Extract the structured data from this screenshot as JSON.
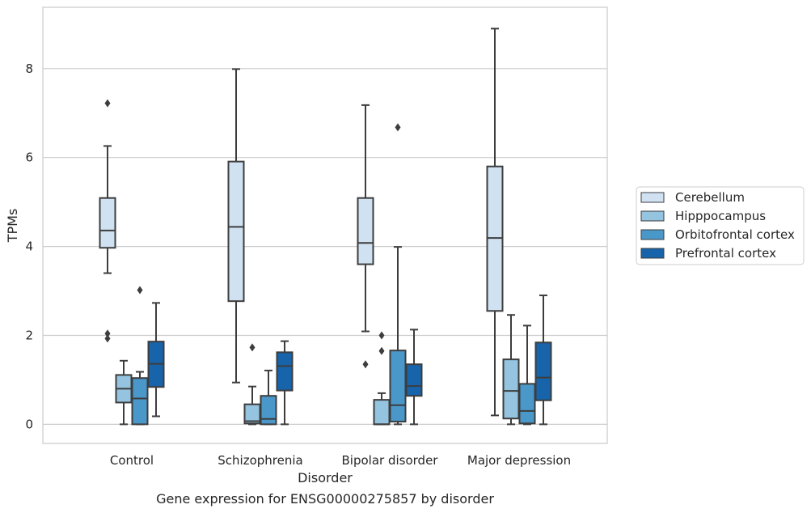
{
  "chart_data": {
    "type": "box",
    "title": "",
    "xlabel": "Disorder",
    "ylabel": "TPMs",
    "caption": "Gene expression for ENSG00000275857 by disorder",
    "categories": [
      "Control",
      "Schizophrenia",
      "Bipolar disorder",
      "Major depression"
    ],
    "ylim": [
      -0.43,
      9.38
    ],
    "yticks": [
      0,
      2,
      4,
      6,
      8
    ],
    "grid": true,
    "legend_position": "right",
    "series": [
      {
        "name": "Cerebellum",
        "color": "#d0e1f2",
        "boxes": [
          {
            "whislo": 3.4,
            "q1": 3.97,
            "med": 4.36,
            "q3": 5.09,
            "whishi": 6.26,
            "fliers": [
              7.22,
              2.04,
              1.93
            ]
          },
          {
            "whislo": 0.94,
            "q1": 2.77,
            "med": 4.44,
            "q3": 5.91,
            "whishi": 7.99,
            "fliers": []
          },
          {
            "whislo": 2.09,
            "q1": 3.6,
            "med": 4.08,
            "q3": 5.09,
            "whishi": 7.18,
            "fliers": [
              1.35
            ]
          },
          {
            "whislo": 0.2,
            "q1": 2.55,
            "med": 4.19,
            "q3": 5.8,
            "whishi": 8.9,
            "fliers": []
          }
        ]
      },
      {
        "name": "Hipppocampus",
        "color": "#94c4df",
        "boxes": [
          {
            "whislo": 0.0,
            "q1": 0.49,
            "med": 0.8,
            "q3": 1.11,
            "whishi": 1.43,
            "fliers": []
          },
          {
            "whislo": 0.0,
            "q1": 0.02,
            "med": 0.07,
            "q3": 0.45,
            "whishi": 0.85,
            "fliers": [
              1.73
            ]
          },
          {
            "whislo": 0.0,
            "q1": 0.0,
            "med": 0.0,
            "q3": 0.55,
            "whishi": 0.7,
            "fliers": [
              2.0,
              1.65
            ]
          },
          {
            "whislo": 0.0,
            "q1": 0.13,
            "med": 0.75,
            "q3": 1.46,
            "whishi": 2.46,
            "fliers": []
          }
        ]
      },
      {
        "name": "Orbitofrontal cortex",
        "color": "#4a98c9",
        "boxes": [
          {
            "whislo": 0.0,
            "q1": 0.0,
            "med": 0.58,
            "q3": 1.04,
            "whishi": 1.18,
            "fliers": [
              3.02
            ]
          },
          {
            "whislo": 0.0,
            "q1": 0.0,
            "med": 0.12,
            "q3": 0.64,
            "whishi": 1.21,
            "fliers": []
          },
          {
            "whislo": 0.0,
            "q1": 0.06,
            "med": 0.43,
            "q3": 1.66,
            "whishi": 3.99,
            "fliers": [
              6.68
            ]
          },
          {
            "whislo": 0.0,
            "q1": 0.02,
            "med": 0.3,
            "q3": 0.91,
            "whishi": 2.22,
            "fliers": []
          }
        ]
      },
      {
        "name": "Prefrontal cortex",
        "color": "#1764ab",
        "boxes": [
          {
            "whislo": 0.18,
            "q1": 0.84,
            "med": 1.36,
            "q3": 1.86,
            "whishi": 2.73,
            "fliers": []
          },
          {
            "whislo": 0.0,
            "q1": 0.76,
            "med": 1.31,
            "q3": 1.62,
            "whishi": 1.87,
            "fliers": []
          },
          {
            "whislo": 0.0,
            "q1": 0.64,
            "med": 0.86,
            "q3": 1.35,
            "whishi": 2.13,
            "fliers": []
          },
          {
            "whislo": 0.0,
            "q1": 0.54,
            "med": 1.05,
            "q3": 1.84,
            "whishi": 2.9,
            "fliers": []
          }
        ]
      }
    ]
  }
}
